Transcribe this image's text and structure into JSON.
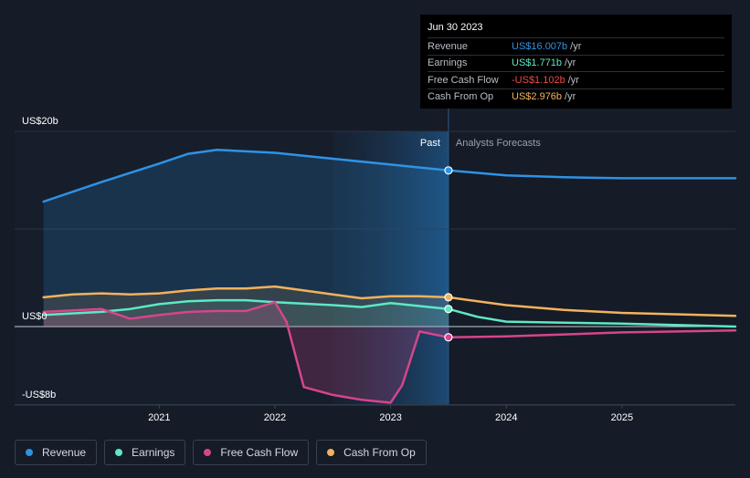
{
  "tooltip": {
    "date": "Jun 30 2023",
    "rows": [
      {
        "label": "Revenue",
        "value": "US$16.007b",
        "unit": "/yr",
        "color": "#2e93e6"
      },
      {
        "label": "Earnings",
        "value": "US$1.771b",
        "unit": "/yr",
        "color": "#5ee8c3"
      },
      {
        "label": "Free Cash Flow",
        "value": "-US$1.102b",
        "unit": "/yr",
        "color": "#f0484a"
      },
      {
        "label": "Cash From Op",
        "value": "US$2.976b",
        "unit": "/yr",
        "color": "#f2b25c"
      }
    ]
  },
  "legend": [
    {
      "label": "Revenue",
      "color": "#2e93e6"
    },
    {
      "label": "Earnings",
      "color": "#5ee8c3"
    },
    {
      "label": "Free Cash Flow",
      "color": "#d6458b"
    },
    {
      "label": "Cash From Op",
      "color": "#f2b25c"
    }
  ],
  "chart_data": {
    "type": "line",
    "ylim": [
      -8,
      20
    ],
    "y_tick_labels": [
      {
        "value": 20,
        "label": "US$20b"
      },
      {
        "value": 0,
        "label": "US$0"
      },
      {
        "value": -8,
        "label": "-US$8b"
      }
    ],
    "x_tick_labels": [
      {
        "value": 2021.0,
        "label": "2021"
      },
      {
        "value": 2022.0,
        "label": "2022"
      },
      {
        "value": 2023.0,
        "label": "2023"
      },
      {
        "value": 2024.0,
        "label": "2024"
      },
      {
        "value": 2025.0,
        "label": "2025"
      }
    ],
    "xlim": [
      2019.75,
      2025.98
    ],
    "past_label": "Past",
    "forecast_label": "Analysts Forecasts",
    "divider_x": 2023.5,
    "shade_start_x": 2022.5,
    "series": [
      {
        "name": "Revenue",
        "color": "#2e93e6",
        "x": [
          2020.0,
          2020.5,
          2021.0,
          2021.25,
          2021.5,
          2022.0,
          2022.5,
          2023.0,
          2023.25,
          2023.5,
          2024.0,
          2024.5,
          2025.0,
          2025.98
        ],
        "y": [
          12.8,
          14.8,
          16.7,
          17.7,
          18.1,
          17.8,
          17.2,
          16.6,
          16.3,
          16.0,
          15.5,
          15.3,
          15.2,
          15.2
        ]
      },
      {
        "name": "Earnings",
        "color": "#5ee8c3",
        "x": [
          2020.0,
          2020.5,
          2020.75,
          2021.0,
          2021.25,
          2021.5,
          2021.75,
          2022.0,
          2022.5,
          2022.75,
          2023.0,
          2023.25,
          2023.5,
          2023.75,
          2024.0,
          2024.5,
          2025.0,
          2025.98
        ],
        "y": [
          1.2,
          1.5,
          1.8,
          2.3,
          2.6,
          2.7,
          2.7,
          2.5,
          2.2,
          2.0,
          2.4,
          2.1,
          1.8,
          1.0,
          0.5,
          0.4,
          0.3,
          0.0
        ]
      },
      {
        "name": "Free Cash Flow",
        "color": "#d6458b",
        "x": [
          2020.0,
          2020.5,
          2020.75,
          2021.0,
          2021.25,
          2021.5,
          2021.75,
          2022.0,
          2022.1,
          2022.25,
          2022.5,
          2022.75,
          2023.0,
          2023.1,
          2023.25,
          2023.5,
          2024.0,
          2024.5,
          2025.0,
          2025.98
        ],
        "y": [
          1.5,
          1.8,
          0.8,
          1.2,
          1.5,
          1.6,
          1.6,
          2.5,
          0.5,
          -6.2,
          -7.0,
          -7.5,
          -7.8,
          -6.0,
          -0.5,
          -1.1,
          -1.0,
          -0.8,
          -0.6,
          -0.4
        ]
      },
      {
        "name": "Cash From Op",
        "color": "#f2b25c",
        "x": [
          2020.0,
          2020.25,
          2020.5,
          2020.75,
          2021.0,
          2021.25,
          2021.5,
          2021.75,
          2022.0,
          2022.25,
          2022.5,
          2022.75,
          2023.0,
          2023.25,
          2023.5,
          2024.0,
          2024.5,
          2025.0,
          2025.98
        ],
        "y": [
          3.0,
          3.3,
          3.4,
          3.3,
          3.4,
          3.7,
          3.9,
          3.9,
          4.1,
          3.7,
          3.3,
          2.9,
          3.1,
          3.1,
          3.0,
          2.2,
          1.7,
          1.4,
          1.1
        ]
      }
    ]
  }
}
